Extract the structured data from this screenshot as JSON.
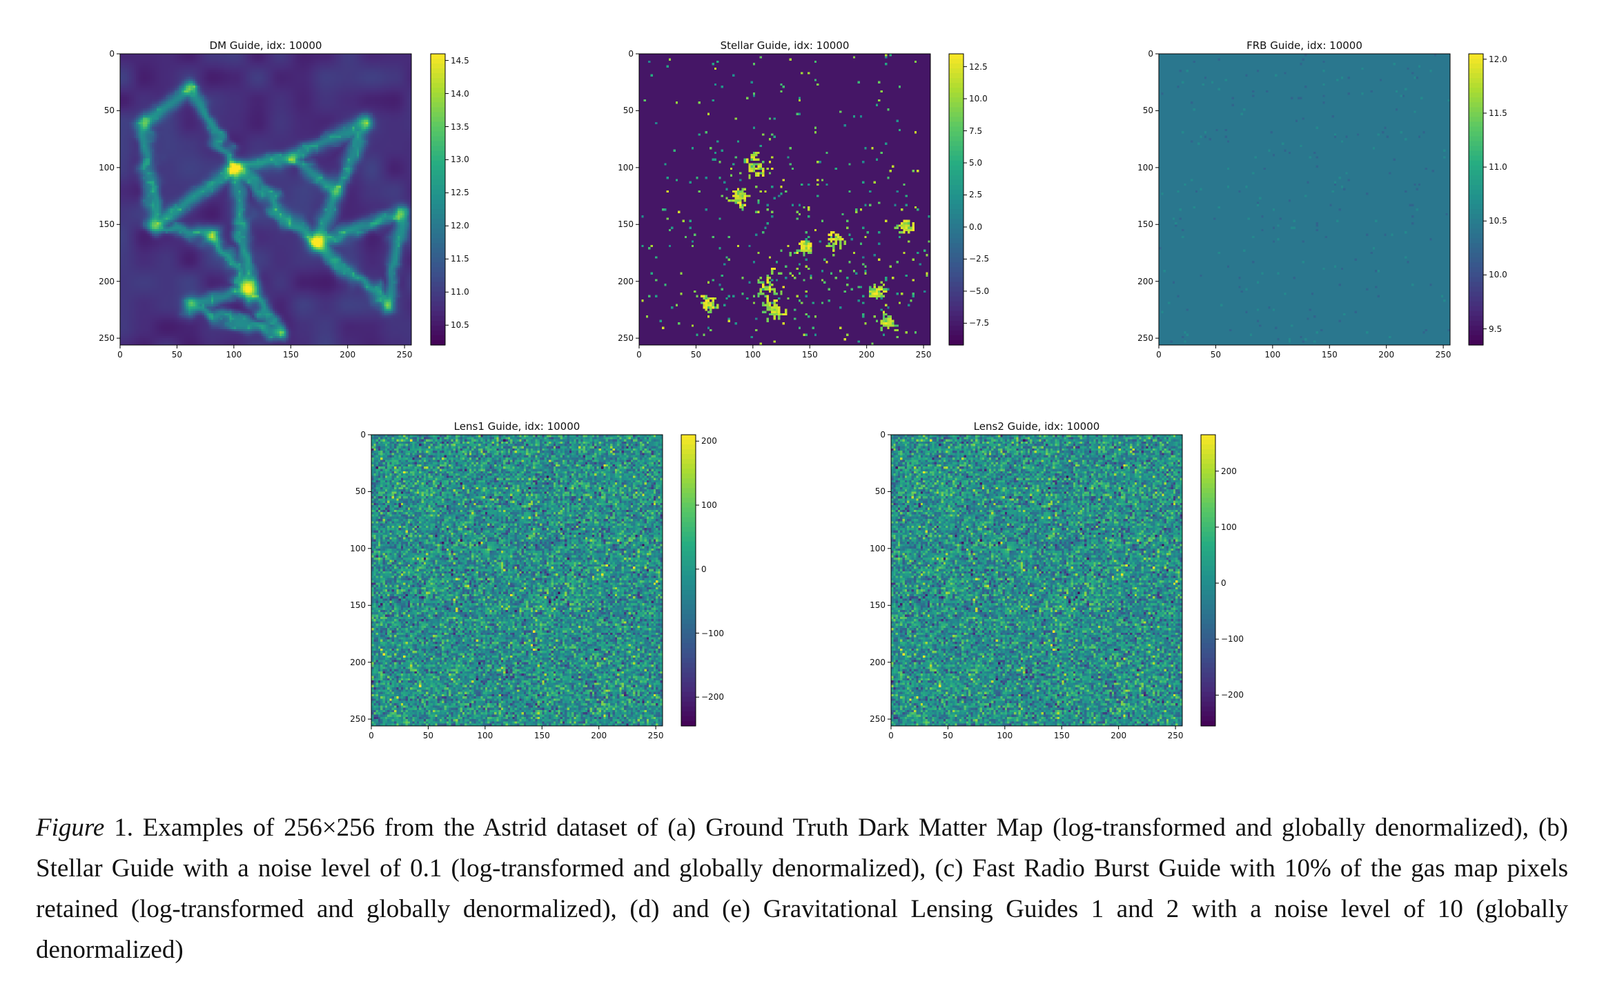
{
  "chart_data": [
    {
      "type": "heatmap",
      "title": "DM Guide, idx: 10000",
      "xlim": [
        0,
        256
      ],
      "ylim": [
        256,
        0
      ],
      "xticks": [
        "0",
        "50",
        "100",
        "150",
        "200",
        "250"
      ],
      "yticks": [
        "0",
        "50",
        "100",
        "150",
        "200",
        "250"
      ],
      "colorbar": {
        "range": [
          10.2,
          14.6
        ],
        "ticks": [
          "10.5",
          "11.0",
          "11.5",
          "12.0",
          "12.5",
          "13.0",
          "13.5",
          "14.0",
          "14.5"
        ]
      },
      "colormap": "viridis",
      "pattern": "cosmic-web filaments"
    },
    {
      "type": "heatmap",
      "title": "Stellar Guide, idx: 10000",
      "xlim": [
        0,
        256
      ],
      "ylim": [
        256,
        0
      ],
      "xticks": [
        "0",
        "50",
        "100",
        "150",
        "200",
        "250"
      ],
      "yticks": [
        "0",
        "50",
        "100",
        "150",
        "200",
        "250"
      ],
      "colorbar": {
        "range": [
          -9.2,
          13.5
        ],
        "ticks": [
          "−7.5",
          "−5.0",
          "−2.5",
          "0.0",
          "2.5",
          "5.0",
          "7.5",
          "10.0",
          "12.5"
        ]
      },
      "colormap": "viridis",
      "pattern": "sparse bright clumps on dark background"
    },
    {
      "type": "heatmap",
      "title": "FRB Guide, idx: 10000",
      "xlim": [
        0,
        256
      ],
      "ylim": [
        256,
        0
      ],
      "xticks": [
        "0",
        "50",
        "100",
        "150",
        "200",
        "250"
      ],
      "yticks": [
        "0",
        "50",
        "100",
        "150",
        "200",
        "250"
      ],
      "colorbar": {
        "range": [
          9.35,
          12.05
        ],
        "ticks": [
          "9.5",
          "10.0",
          "10.5",
          "11.0",
          "11.5",
          "12.0"
        ]
      },
      "colormap": "viridis",
      "pattern": "uniform field with sparse specks"
    },
    {
      "type": "heatmap",
      "title": "Lens1 Guide, idx: 10000",
      "xlim": [
        0,
        256
      ],
      "ylim": [
        256,
        0
      ],
      "xticks": [
        "0",
        "50",
        "100",
        "150",
        "200",
        "250"
      ],
      "yticks": [
        "0",
        "50",
        "100",
        "150",
        "200",
        "250"
      ],
      "colorbar": {
        "range": [
          -245,
          210
        ],
        "ticks": [
          "−200",
          "−100",
          "0",
          "100",
          "200"
        ]
      },
      "colormap": "viridis",
      "pattern": "noise"
    },
    {
      "type": "heatmap",
      "title": "Lens2 Guide, idx: 10000",
      "xlim": [
        0,
        256
      ],
      "ylim": [
        256,
        0
      ],
      "xticks": [
        "0",
        "50",
        "100",
        "150",
        "200",
        "250"
      ],
      "yticks": [
        "0",
        "50",
        "100",
        "150",
        "200",
        "250"
      ],
      "colorbar": {
        "range": [
          -255,
          265
        ],
        "ticks": [
          "−200",
          "−100",
          "0",
          "100",
          "200"
        ]
      },
      "colormap": "viridis",
      "pattern": "noise"
    }
  ],
  "caption": {
    "label": "Figure",
    "text": " 1. Examples of 256×256 from the Astrid dataset of (a) Ground Truth Dark Matter Map (log-transformed and globally denormalized), (b) Stellar Guide with a noise level of 0.1 (log-transformed and globally denormalized), (c) Fast Radio Burst Guide with 10% of the gas map pixels retained (log-transformed and globally denormalized), (d) and (e) Gravitational Lensing Guides 1 and 2 with a noise level of 10 (globally denormalized)"
  }
}
